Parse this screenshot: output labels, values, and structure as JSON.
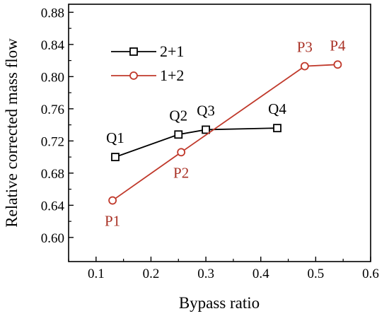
{
  "chart_data": {
    "type": "line",
    "title": "",
    "xlabel": "Bypass ratio",
    "ylabel": "Relative corrected mass flow",
    "xlim": [
      0.05,
      0.6
    ],
    "ylim": [
      0.57,
      0.89
    ],
    "xticks": [
      0.1,
      0.2,
      0.3,
      0.4,
      0.5,
      0.6
    ],
    "xtick_labels": [
      "0.1",
      "0.2",
      "0.3",
      "0.4",
      "0.5",
      "0.6"
    ],
    "yticks": [
      0.6,
      0.64,
      0.68,
      0.72,
      0.76,
      0.8,
      0.84,
      0.88
    ],
    "ytick_labels": [
      "0.60",
      "0.64",
      "0.68",
      "0.72",
      "0.76",
      "0.80",
      "0.84",
      "0.88"
    ],
    "grid": false,
    "legend_position": "top-left",
    "series": [
      {
        "name": "2+1",
        "color": "#000000",
        "marker": "square",
        "x": [
          0.135,
          0.25,
          0.3,
          0.43
        ],
        "y": [
          0.7,
          0.728,
          0.734,
          0.736
        ],
        "point_labels": [
          "Q1",
          "Q2",
          "Q3",
          "Q4"
        ],
        "label_color": "#000000"
      },
      {
        "name": "1+2",
        "color": "#c0392b",
        "marker": "circle",
        "x": [
          0.13,
          0.255,
          0.48,
          0.54
        ],
        "y": [
          0.646,
          0.706,
          0.813,
          0.815
        ],
        "point_labels": [
          "P1",
          "P2",
          "P3",
          "P4"
        ],
        "label_color": "#a93226"
      }
    ]
  }
}
